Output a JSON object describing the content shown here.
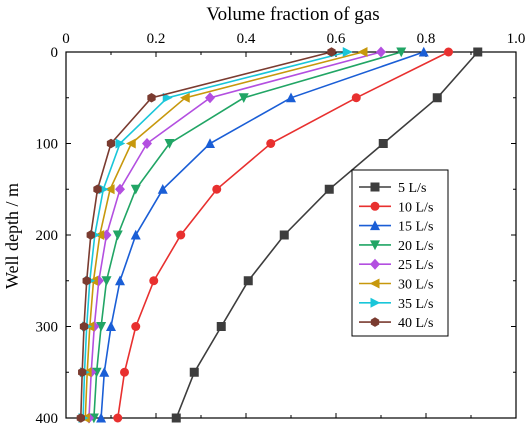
{
  "chart_data": {
    "type": "line",
    "title": "",
    "xlabel": "Volume fraction of gas",
    "ylabel": "Well depth / m",
    "x_axis_position": "top",
    "y_axis_inverted": true,
    "xlim": [
      0,
      1.0
    ],
    "ylim": [
      0,
      400
    ],
    "x_ticks": [
      "0",
      "0.2",
      "0.4",
      "0.6",
      "0.8",
      "1.0"
    ],
    "y_ticks": [
      "0",
      "100",
      "200",
      "300",
      "400"
    ],
    "grid": false,
    "legend_position": "center-right",
    "depths": [
      0,
      50,
      100,
      150,
      200,
      250,
      300,
      350,
      400
    ],
    "series": [
      {
        "name": "5 L/s",
        "color": "#3d3d3d",
        "marker": "square",
        "x": [
          0.915,
          0.825,
          0.705,
          0.585,
          0.485,
          0.405,
          0.345,
          0.285,
          0.245
        ]
      },
      {
        "name": "10 L/s",
        "color": "#e8302f",
        "marker": "circle",
        "x": [
          0.85,
          0.645,
          0.455,
          0.335,
          0.255,
          0.195,
          0.155,
          0.13,
          0.115
        ]
      },
      {
        "name": "15 L/s",
        "color": "#1a5ed6",
        "marker": "triangle-up",
        "x": [
          0.795,
          0.5,
          0.32,
          0.215,
          0.155,
          0.12,
          0.1,
          0.085,
          0.078
        ]
      },
      {
        "name": "20 L/s",
        "color": "#21a565",
        "marker": "triangle-down",
        "x": [
          0.745,
          0.395,
          0.23,
          0.155,
          0.115,
          0.09,
          0.078,
          0.068,
          0.062
        ]
      },
      {
        "name": "25 L/s",
        "color": "#b34fe0",
        "marker": "diamond",
        "x": [
          0.7,
          0.32,
          0.18,
          0.12,
          0.09,
          0.073,
          0.063,
          0.056,
          0.051
        ]
      },
      {
        "name": "30 L/s",
        "color": "#c7980c",
        "marker": "triangle-left",
        "x": [
          0.66,
          0.265,
          0.145,
          0.098,
          0.075,
          0.061,
          0.053,
          0.047,
          0.043
        ]
      },
      {
        "name": "35 L/s",
        "color": "#19c6d9",
        "marker": "triangle-right",
        "x": [
          0.625,
          0.225,
          0.12,
          0.083,
          0.064,
          0.053,
          0.046,
          0.041,
          0.038
        ]
      },
      {
        "name": "40 L/s",
        "color": "#7a3b30",
        "marker": "hexagon",
        "x": [
          0.59,
          0.19,
          0.1,
          0.07,
          0.055,
          0.046,
          0.04,
          0.036,
          0.033
        ]
      }
    ]
  }
}
